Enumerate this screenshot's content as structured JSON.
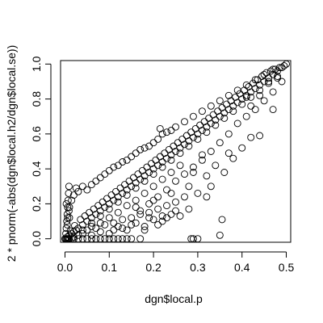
{
  "chart_data": {
    "type": "scatter",
    "title": "",
    "xlabel": "dgn$local.p",
    "ylabel": "2 * pnorm(-abs(dgn$local.h2/dgn$local.se))",
    "xlim": [
      -0.01,
      0.51
    ],
    "ylim": [
      -0.02,
      1.02
    ],
    "x_ticks": [
      "0.0",
      "0.1",
      "0.2",
      "0.3",
      "0.4",
      "0.5"
    ],
    "y_ticks": [
      "0.0",
      "0.2",
      "0.4",
      "0.6",
      "0.8",
      "1.0"
    ],
    "grid": false,
    "marker": "open-circle",
    "series": [
      {
        "points": [
          [
            0.0,
            0.0
          ],
          [
            0.005,
            0.01
          ],
          [
            0.01,
            0.02
          ],
          [
            0.015,
            0.03
          ],
          [
            0.02,
            0.04
          ],
          [
            0.025,
            0.05
          ],
          [
            0.03,
            0.06
          ],
          [
            0.04,
            0.08
          ],
          [
            0.05,
            0.1
          ],
          [
            0.06,
            0.12
          ],
          [
            0.07,
            0.14
          ],
          [
            0.08,
            0.16
          ],
          [
            0.09,
            0.18
          ],
          [
            0.1,
            0.2
          ],
          [
            0.11,
            0.22
          ],
          [
            0.12,
            0.24
          ],
          [
            0.13,
            0.26
          ],
          [
            0.14,
            0.28
          ],
          [
            0.15,
            0.3
          ],
          [
            0.16,
            0.32
          ],
          [
            0.17,
            0.34
          ],
          [
            0.18,
            0.36
          ],
          [
            0.19,
            0.38
          ],
          [
            0.2,
            0.4
          ],
          [
            0.21,
            0.42
          ],
          [
            0.22,
            0.44
          ],
          [
            0.23,
            0.46
          ],
          [
            0.24,
            0.48
          ],
          [
            0.25,
            0.5
          ],
          [
            0.26,
            0.52
          ],
          [
            0.27,
            0.54
          ],
          [
            0.28,
            0.56
          ],
          [
            0.29,
            0.58
          ],
          [
            0.3,
            0.6
          ],
          [
            0.31,
            0.62
          ],
          [
            0.32,
            0.64
          ],
          [
            0.33,
            0.66
          ],
          [
            0.34,
            0.68
          ],
          [
            0.35,
            0.7
          ],
          [
            0.36,
            0.72
          ],
          [
            0.37,
            0.74
          ],
          [
            0.38,
            0.76
          ],
          [
            0.39,
            0.78
          ],
          [
            0.4,
            0.8
          ],
          [
            0.41,
            0.82
          ],
          [
            0.42,
            0.84
          ],
          [
            0.43,
            0.86
          ],
          [
            0.44,
            0.88
          ],
          [
            0.45,
            0.9
          ],
          [
            0.46,
            0.92
          ],
          [
            0.47,
            0.94
          ],
          [
            0.48,
            0.96
          ],
          [
            0.49,
            0.98
          ],
          [
            0.5,
            1.0
          ],
          [
            0.012,
            0.045
          ],
          [
            0.022,
            0.075
          ],
          [
            0.035,
            0.11
          ],
          [
            0.045,
            0.13
          ],
          [
            0.055,
            0.15
          ],
          [
            0.065,
            0.17
          ],
          [
            0.075,
            0.19
          ],
          [
            0.085,
            0.21
          ],
          [
            0.095,
            0.23
          ],
          [
            0.105,
            0.25
          ],
          [
            0.115,
            0.27
          ],
          [
            0.125,
            0.29
          ],
          [
            0.135,
            0.31
          ],
          [
            0.145,
            0.33
          ],
          [
            0.155,
            0.35
          ],
          [
            0.165,
            0.37
          ],
          [
            0.175,
            0.39
          ],
          [
            0.185,
            0.41
          ],
          [
            0.195,
            0.43
          ],
          [
            0.205,
            0.45
          ],
          [
            0.215,
            0.47
          ],
          [
            0.225,
            0.49
          ],
          [
            0.235,
            0.51
          ],
          [
            0.245,
            0.53
          ],
          [
            0.255,
            0.55
          ],
          [
            0.265,
            0.57
          ],
          [
            0.275,
            0.59
          ],
          [
            0.285,
            0.61
          ],
          [
            0.295,
            0.63
          ],
          [
            0.305,
            0.65
          ],
          [
            0.315,
            0.67
          ],
          [
            0.325,
            0.69
          ],
          [
            0.335,
            0.71
          ],
          [
            0.345,
            0.73
          ],
          [
            0.355,
            0.75
          ],
          [
            0.365,
            0.77
          ],
          [
            0.375,
            0.79
          ],
          [
            0.385,
            0.81
          ],
          [
            0.395,
            0.83
          ],
          [
            0.405,
            0.85
          ],
          [
            0.415,
            0.87
          ],
          [
            0.425,
            0.89
          ],
          [
            0.435,
            0.91
          ],
          [
            0.445,
            0.93
          ],
          [
            0.455,
            0.95
          ],
          [
            0.465,
            0.96
          ],
          [
            0.475,
            0.97
          ],
          [
            0.485,
            0.98
          ],
          [
            0.495,
            0.99
          ],
          [
            0.02,
            0.01
          ],
          [
            0.04,
            0.05
          ],
          [
            0.06,
            0.09
          ],
          [
            0.08,
            0.13
          ],
          [
            0.1,
            0.17
          ],
          [
            0.12,
            0.21
          ],
          [
            0.14,
            0.25
          ],
          [
            0.16,
            0.29
          ],
          [
            0.18,
            0.33
          ],
          [
            0.2,
            0.37
          ],
          [
            0.22,
            0.41
          ],
          [
            0.24,
            0.45
          ],
          [
            0.26,
            0.49
          ],
          [
            0.28,
            0.53
          ],
          [
            0.3,
            0.57
          ],
          [
            0.32,
            0.61
          ],
          [
            0.34,
            0.65
          ],
          [
            0.36,
            0.69
          ],
          [
            0.38,
            0.73
          ],
          [
            0.4,
            0.77
          ],
          [
            0.42,
            0.81
          ],
          [
            0.44,
            0.85
          ],
          [
            0.46,
            0.89
          ],
          [
            0.48,
            0.93
          ],
          [
            0.005,
            0.08
          ],
          [
            0.01,
            0.12
          ],
          [
            0.01,
            0.18
          ],
          [
            0.015,
            0.22
          ],
          [
            0.02,
            0.25
          ],
          [
            0.025,
            0.29
          ],
          [
            0.03,
            0.27
          ],
          [
            0.04,
            0.3
          ],
          [
            0.05,
            0.28
          ],
          [
            0.06,
            0.31
          ],
          [
            0.07,
            0.33
          ],
          [
            0.08,
            0.35
          ],
          [
            0.09,
            0.37
          ],
          [
            0.1,
            0.39
          ],
          [
            0.11,
            0.41
          ],
          [
            0.12,
            0.42
          ],
          [
            0.13,
            0.44
          ],
          [
            0.14,
            0.45
          ],
          [
            0.15,
            0.47
          ],
          [
            0.16,
            0.49
          ],
          [
            0.17,
            0.51
          ],
          [
            0.18,
            0.52
          ],
          [
            0.19,
            0.53
          ],
          [
            0.2,
            0.55
          ],
          [
            0.21,
            0.57
          ],
          [
            0.215,
            0.63
          ],
          [
            0.22,
            0.6
          ],
          [
            0.23,
            0.61
          ],
          [
            0.24,
            0.62
          ],
          [
            0.25,
            0.64
          ],
          [
            0.27,
            0.67
          ],
          [
            0.29,
            0.7
          ],
          [
            0.31,
            0.73
          ],
          [
            0.33,
            0.76
          ],
          [
            0.35,
            0.79
          ],
          [
            0.37,
            0.82
          ],
          [
            0.39,
            0.85
          ],
          [
            0.41,
            0.88
          ],
          [
            0.43,
            0.91
          ],
          [
            0.45,
            0.94
          ],
          [
            0.47,
            0.97
          ],
          [
            0.002,
            0.0
          ],
          [
            0.004,
            0.0
          ],
          [
            0.006,
            0.0
          ],
          [
            0.008,
            0.0
          ],
          [
            0.01,
            0.0
          ],
          [
            0.015,
            0.0
          ],
          [
            0.02,
            0.0
          ],
          [
            0.03,
            0.0
          ],
          [
            0.04,
            0.0
          ],
          [
            0.05,
            0.0
          ],
          [
            0.06,
            0.0
          ],
          [
            0.07,
            0.0
          ],
          [
            0.08,
            0.0
          ],
          [
            0.09,
            0.0
          ],
          [
            0.1,
            0.0
          ],
          [
            0.11,
            0.0
          ],
          [
            0.12,
            0.0
          ],
          [
            0.13,
            0.0
          ],
          [
            0.14,
            0.0
          ],
          [
            0.15,
            0.0
          ],
          [
            0.17,
            0.0
          ],
          [
            0.285,
            0.0
          ],
          [
            0.29,
            0.0
          ],
          [
            0.3,
            0.0
          ],
          [
            0.002,
            0.03
          ],
          [
            0.003,
            0.06
          ],
          [
            0.004,
            0.1
          ],
          [
            0.005,
            0.14
          ],
          [
            0.006,
            0.18
          ],
          [
            0.007,
            0.22
          ],
          [
            0.008,
            0.26
          ],
          [
            0.009,
            0.3
          ],
          [
            0.003,
            0.2
          ],
          [
            0.006,
            0.12
          ],
          [
            0.009,
            0.16
          ],
          [
            0.05,
            0.05
          ],
          [
            0.07,
            0.06
          ],
          [
            0.09,
            0.08
          ],
          [
            0.11,
            0.09
          ],
          [
            0.13,
            0.11
          ],
          [
            0.15,
            0.12
          ],
          [
            0.17,
            0.14
          ],
          [
            0.19,
            0.15
          ],
          [
            0.21,
            0.17
          ],
          [
            0.23,
            0.19
          ],
          [
            0.25,
            0.21
          ],
          [
            0.27,
            0.24
          ],
          [
            0.06,
            0.02
          ],
          [
            0.1,
            0.03
          ],
          [
            0.14,
            0.05
          ],
          [
            0.18,
            0.07
          ],
          [
            0.22,
            0.1
          ],
          [
            0.26,
            0.13
          ],
          [
            0.08,
            0.04
          ],
          [
            0.12,
            0.07
          ],
          [
            0.16,
            0.09
          ],
          [
            0.2,
            0.11
          ],
          [
            0.24,
            0.14
          ],
          [
            0.28,
            0.17
          ],
          [
            0.16,
            0.18
          ],
          [
            0.2,
            0.22
          ],
          [
            0.24,
            0.26
          ],
          [
            0.28,
            0.3
          ],
          [
            0.32,
            0.36
          ],
          [
            0.34,
            0.42
          ],
          [
            0.3,
            0.26
          ],
          [
            0.33,
            0.3
          ],
          [
            0.36,
            0.38
          ],
          [
            0.38,
            0.46
          ],
          [
            0.4,
            0.52
          ],
          [
            0.42,
            0.58
          ],
          [
            0.29,
            0.38
          ],
          [
            0.31,
            0.45
          ],
          [
            0.33,
            0.5
          ],
          [
            0.35,
            0.55
          ],
          [
            0.37,
            0.6
          ],
          [
            0.39,
            0.66
          ],
          [
            0.41,
            0.7
          ],
          [
            0.43,
            0.74
          ],
          [
            0.45,
            0.79
          ],
          [
            0.47,
            0.84
          ],
          [
            0.49,
            0.9
          ],
          [
            0.32,
            0.24
          ],
          [
            0.35,
            0.02
          ],
          [
            0.355,
            0.11
          ],
          [
            0.37,
            0.49
          ],
          [
            0.44,
            0.59
          ],
          [
            0.41,
            0.81
          ],
          [
            0.47,
            0.74
          ],
          [
            0.46,
            0.9
          ],
          [
            0.42,
            0.76
          ],
          [
            0.44,
            0.82
          ],
          [
            0.48,
            0.92
          ],
          [
            0.18,
            0.05
          ],
          [
            0.21,
            0.08
          ],
          [
            0.23,
            0.12
          ],
          [
            0.25,
            0.16
          ],
          [
            0.19,
            0.12
          ],
          [
            0.22,
            0.13
          ],
          [
            0.15,
            0.08
          ],
          [
            0.13,
            0.06
          ],
          [
            0.11,
            0.05
          ],
          [
            0.17,
            0.16
          ],
          [
            0.19,
            0.2
          ],
          [
            0.21,
            0.24
          ],
          [
            0.23,
            0.28
          ],
          [
            0.25,
            0.33
          ],
          [
            0.27,
            0.37
          ],
          [
            0.29,
            0.41
          ],
          [
            0.31,
            0.48
          ],
          [
            0.26,
            0.42
          ],
          [
            0.24,
            0.38
          ],
          [
            0.22,
            0.34
          ],
          [
            0.2,
            0.3
          ],
          [
            0.18,
            0.26
          ],
          [
            0.16,
            0.22
          ],
          [
            0.14,
            0.19
          ],
          [
            0.12,
            0.15
          ],
          [
            0.1,
            0.12
          ],
          [
            0.08,
            0.09
          ],
          [
            0.06,
            0.07
          ],
          [
            0.04,
            0.03
          ],
          [
            0.03,
            0.02
          ]
        ]
      }
    ]
  }
}
